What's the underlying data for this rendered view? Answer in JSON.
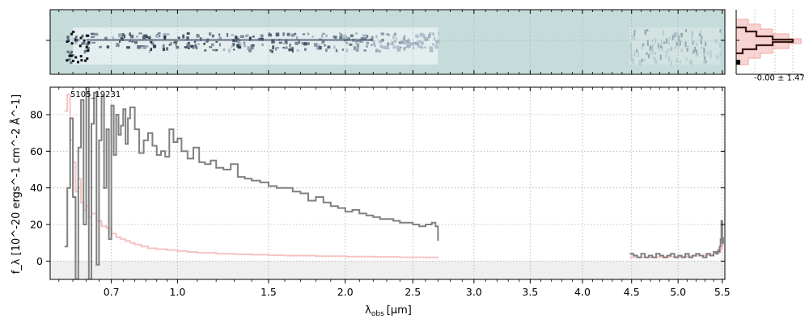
{
  "chart_data": {
    "type": "line",
    "object_id": "5105_19231",
    "xlabel_main": "λ",
    "xlabel_sub": "obs",
    "xlabel_unit": "[μm]",
    "ylabel": "f_λ [10^-20 ergs^-1 cm^-2 Å^-1]",
    "ylim": [
      -10,
      95
    ],
    "yticks": [
      0,
      20,
      40,
      60,
      80
    ],
    "xticks": [
      0.7,
      1.0,
      1.5,
      2.0,
      2.5,
      3.0,
      3.5,
      4.0,
      4.5,
      5.0,
      5.5
    ],
    "xtick_labels": [
      "0.7",
      "1.0",
      "1.5",
      "2.0",
      "2.5",
      "3.0",
      "3.5",
      "4.0",
      "4.5",
      "5.0",
      "5.5"
    ],
    "grid": true,
    "colors": {
      "flux": "#808080",
      "error": "#f4b8b8",
      "image_background": "#c5dcdb",
      "inset_line": "#3b1a14"
    },
    "series": [
      {
        "role": "flux",
        "x": [
          0.52,
          0.53,
          0.54,
          0.55,
          0.56,
          0.57,
          0.58,
          0.59,
          0.6,
          0.61,
          0.62,
          0.63,
          0.64,
          0.65,
          0.66,
          0.67,
          0.68,
          0.69,
          0.7,
          0.71,
          0.72,
          0.73,
          0.74,
          0.75,
          0.76,
          0.77,
          0.78,
          0.8,
          0.82,
          0.84,
          0.86,
          0.88,
          0.9,
          0.92,
          0.94,
          0.96,
          0.98,
          1.0,
          1.02,
          1.05,
          1.08,
          1.11,
          1.14,
          1.17,
          1.2,
          1.24,
          1.28,
          1.32,
          1.36,
          1.4,
          1.45,
          1.5,
          1.55,
          1.6,
          1.65,
          1.7,
          1.75,
          1.8,
          1.85,
          1.9,
          1.95,
          2.0,
          2.05,
          2.1,
          2.15,
          2.2,
          2.25,
          2.3,
          2.35,
          2.4,
          2.45,
          2.5,
          2.55,
          2.6,
          2.65,
          2.68,
          2.7,
          4.48,
          4.52,
          4.56,
          4.6,
          4.64,
          4.68,
          4.72,
          4.76,
          4.8,
          4.84,
          4.88,
          4.92,
          4.96,
          5.0,
          5.04,
          5.08,
          5.12,
          5.16,
          5.2,
          5.24,
          5.28,
          5.32,
          5.36,
          5.4,
          5.43,
          5.45,
          5.46,
          5.47,
          5.48,
          5.49,
          5.5,
          5.51
        ],
        "y": [
          8,
          40,
          78,
          35,
          -10,
          62,
          88,
          20,
          95,
          -10,
          75,
          92,
          -2,
          66,
          90,
          40,
          72,
          12,
          85,
          58,
          80,
          69,
          74,
          83,
          64,
          78,
          84,
          72,
          59,
          66,
          70,
          63,
          58,
          60,
          57,
          72,
          65,
          67,
          60,
          56,
          62,
          54,
          53,
          55,
          51,
          50,
          53,
          46,
          45,
          44,
          43,
          41,
          40,
          40,
          38,
          37,
          33,
          35,
          32,
          30,
          29,
          27,
          28,
          26,
          25,
          24,
          23,
          23,
          22,
          21,
          21,
          20,
          19,
          20,
          21,
          19,
          11,
          4,
          3,
          2,
          4,
          2,
          3,
          2,
          4,
          3,
          2,
          3,
          4,
          2,
          3,
          2,
          4,
          2,
          3,
          4,
          3,
          2,
          4,
          3,
          5,
          4,
          6,
          5,
          8,
          12,
          22,
          10,
          13
        ]
      },
      {
        "role": "error",
        "x": [
          0.52,
          0.53,
          0.54,
          0.55,
          0.56,
          0.57,
          0.58,
          0.59,
          0.6,
          0.61,
          0.62,
          0.64,
          0.66,
          0.68,
          0.7,
          0.72,
          0.74,
          0.76,
          0.78,
          0.8,
          0.83,
          0.86,
          0.9,
          0.95,
          1.0,
          1.05,
          1.1,
          1.2,
          1.3,
          1.4,
          1.5,
          1.6,
          1.8,
          2.0,
          2.2,
          2.4,
          2.6,
          2.7,
          4.48,
          4.6,
          4.7,
          4.8,
          4.9,
          5.0,
          5.1,
          5.2,
          5.3,
          5.4,
          5.45,
          5.48,
          5.5,
          5.51
        ],
        "y": [
          82,
          91,
          66,
          54,
          38,
          45,
          32,
          28,
          30,
          24,
          26,
          22,
          19,
          18,
          15,
          13,
          12,
          11,
          10,
          9,
          8,
          7,
          6.5,
          6,
          5.5,
          5,
          4.5,
          4,
          3.7,
          3.5,
          3.2,
          3,
          2.7,
          2.5,
          2.3,
          2.1,
          2,
          1.8,
          2,
          2,
          2.1,
          2.2,
          2.3,
          2.5,
          2.7,
          3,
          3.3,
          4,
          5,
          7,
          10,
          8
        ]
      }
    ],
    "inset": {
      "label": "-0.00 ± 1.47"
    }
  }
}
